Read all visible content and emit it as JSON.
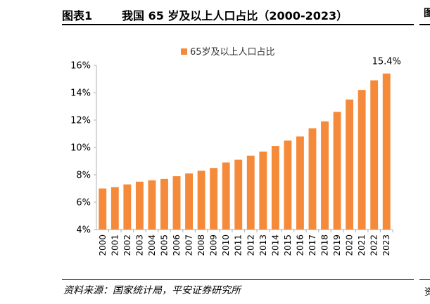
{
  "header": {
    "figure_label": "图表1",
    "title": "我国 65 岁及以上人口占比（2000-2023）"
  },
  "edge": {
    "top_glyph": "图",
    "bottom_glyph": "资"
  },
  "source": "资料来源：国家统计局，平安证券研究所",
  "colors": {
    "bar": "#F58A3A",
    "axis": "#B0B0B0"
  },
  "chart_data": {
    "type": "bar",
    "title": "",
    "legend": "65岁及以上人口占比",
    "legend_position": "top-center",
    "categories": [
      "2000",
      "2001",
      "2002",
      "2003",
      "2004",
      "2005",
      "2006",
      "2007",
      "2008",
      "2009",
      "2010",
      "2011",
      "2012",
      "2013",
      "2014",
      "2015",
      "2016",
      "2017",
      "2018",
      "2019",
      "2020",
      "2021",
      "2022",
      "2023"
    ],
    "values": [
      7.0,
      7.1,
      7.3,
      7.5,
      7.6,
      7.7,
      7.9,
      8.1,
      8.3,
      8.5,
      8.9,
      9.1,
      9.4,
      9.7,
      10.1,
      10.5,
      10.8,
      11.4,
      11.9,
      12.6,
      13.5,
      14.2,
      14.9,
      15.4
    ],
    "ylim": [
      4,
      16
    ],
    "yticks": [
      "4%",
      "6%",
      "8%",
      "10%",
      "12%",
      "14%",
      "16%"
    ],
    "ytick_values": [
      4,
      6,
      8,
      10,
      12,
      14,
      16
    ],
    "annotation": {
      "category": "2023",
      "text": "15.4%"
    },
    "xlabel": "",
    "ylabel": "",
    "grid": false
  }
}
